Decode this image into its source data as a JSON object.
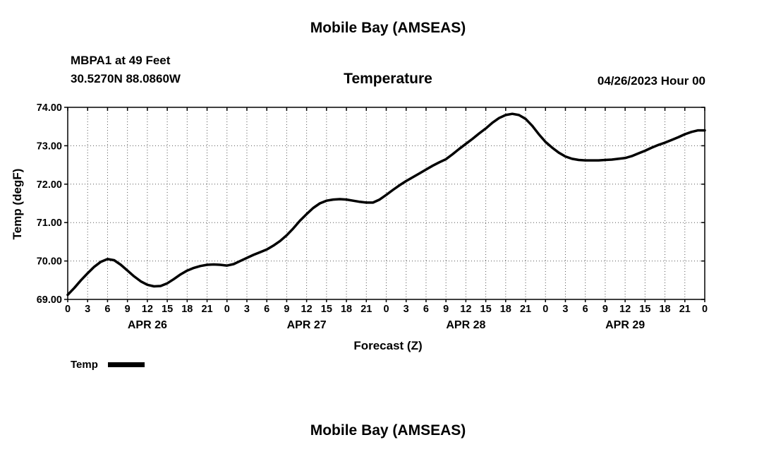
{
  "page": {
    "top_title": "Mobile Bay (AMSEAS)",
    "bottom_title": "Mobile Bay (AMSEAS)"
  },
  "header": {
    "station_line1": "MBPA1 at 49 Feet",
    "station_line2": "30.5270N  88.0860W",
    "chart_title": "Temperature",
    "datetime": "04/26/2023 Hour 00"
  },
  "legend": {
    "label": "Temp"
  },
  "chart_data": {
    "type": "line",
    "title": "Temperature",
    "xlabel": "Forecast (Z)",
    "ylabel": "Temp (degF)",
    "xlim": [
      0,
      96
    ],
    "ylim": [
      69,
      74
    ],
    "grid": true,
    "legend_position": "bottom-left",
    "x_tick_step": 3,
    "x_tick_labels": [
      "0",
      "3",
      "6",
      "9",
      "12",
      "15",
      "18",
      "21",
      "0",
      "3",
      "6",
      "9",
      "12",
      "15",
      "18",
      "21",
      "0",
      "3",
      "6",
      "9",
      "12",
      "15",
      "18",
      "21",
      "0",
      "3",
      "6",
      "9",
      "12",
      "15",
      "18",
      "21",
      "0"
    ],
    "y_ticks": [
      {
        "value": 69,
        "label": "69.00"
      },
      {
        "value": 70,
        "label": "70.00"
      },
      {
        "value": 71,
        "label": "71.00"
      },
      {
        "value": 72,
        "label": "72.00"
      },
      {
        "value": 73,
        "label": "73.00"
      },
      {
        "value": 74,
        "label": "74.00"
      }
    ],
    "day_labels": [
      {
        "label": "APR 26",
        "hour": 12
      },
      {
        "label": "APR 27",
        "hour": 36
      },
      {
        "label": "APR 28",
        "hour": 60
      },
      {
        "label": "APR 29",
        "hour": 84
      }
    ],
    "series": [
      {
        "name": "Temp",
        "color": "#000000",
        "x_start": 0,
        "x_step": 1,
        "values": [
          69.12,
          69.3,
          69.5,
          69.68,
          69.85,
          69.98,
          70.05,
          70.02,
          69.9,
          69.75,
          69.6,
          69.47,
          69.38,
          69.34,
          69.35,
          69.42,
          69.53,
          69.65,
          69.75,
          69.82,
          69.87,
          69.9,
          69.91,
          69.9,
          69.88,
          69.92,
          70.0,
          70.08,
          70.16,
          70.23,
          70.3,
          70.4,
          70.52,
          70.67,
          70.85,
          71.05,
          71.22,
          71.38,
          71.5,
          71.57,
          71.6,
          71.61,
          71.6,
          71.57,
          71.54,
          71.52,
          71.52,
          71.6,
          71.72,
          71.85,
          71.97,
          72.08,
          72.18,
          72.28,
          72.38,
          72.48,
          72.57,
          72.65,
          72.78,
          72.92,
          73.05,
          73.18,
          73.32,
          73.45,
          73.6,
          73.72,
          73.8,
          73.83,
          73.8,
          73.7,
          73.52,
          73.3,
          73.1,
          72.95,
          72.82,
          72.72,
          72.66,
          72.63,
          72.62,
          72.62,
          72.62,
          72.63,
          72.64,
          72.66,
          72.68,
          72.73,
          72.8,
          72.87,
          72.95,
          73.02,
          73.08,
          73.15,
          73.22,
          73.3,
          73.36,
          73.4,
          73.4
        ]
      }
    ]
  }
}
